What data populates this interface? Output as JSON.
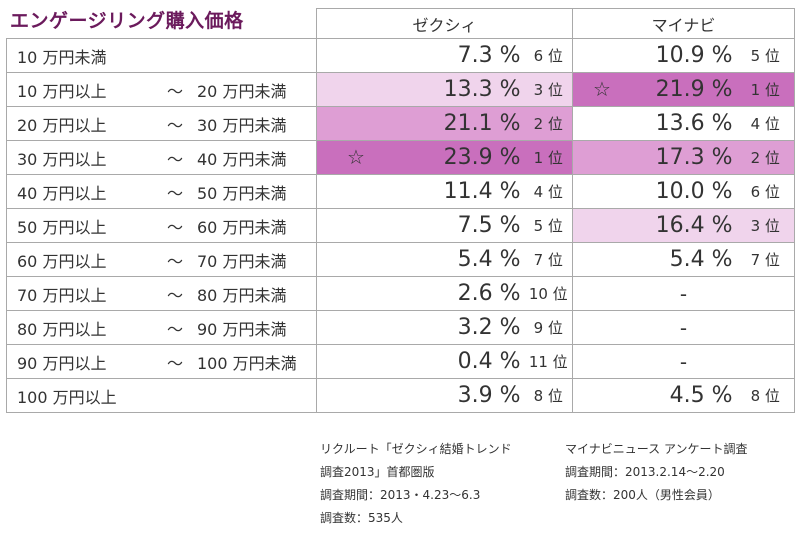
{
  "title": "エンゲージリング購入価格",
  "header": {
    "zexy": "ゼクシィ",
    "mynavi": "マイナビ"
  },
  "star": "☆",
  "rows": [
    {
      "label_from": "10 万円未満",
      "tilde": "",
      "label_to": "",
      "zexy_pct": "7.3 %",
      "zexy_rank": "6 位",
      "mynavi_pct": "10.9 %",
      "mynavi_rank": "5 位"
    },
    {
      "label_from": "10 万円以上",
      "tilde": "～",
      "label_to": "20 万円未満",
      "zexy_pct": "13.3 %",
      "zexy_rank": "3 位",
      "mynavi_pct": "21.9 %",
      "mynavi_rank": "1 位"
    },
    {
      "label_from": "20 万円以上",
      "tilde": "～",
      "label_to": "30 万円未満",
      "zexy_pct": "21.1 %",
      "zexy_rank": "2 位",
      "mynavi_pct": "13.6 %",
      "mynavi_rank": "4 位"
    },
    {
      "label_from": "30 万円以上",
      "tilde": "～",
      "label_to": "40 万円未満",
      "zexy_pct": "23.9 %",
      "zexy_rank": "1 位",
      "mynavi_pct": "17.3 %",
      "mynavi_rank": "2 位"
    },
    {
      "label_from": "40 万円以上",
      "tilde": "～",
      "label_to": "50 万円未満",
      "zexy_pct": "11.4 %",
      "zexy_rank": "4 位",
      "mynavi_pct": "10.0 %",
      "mynavi_rank": "6 位"
    },
    {
      "label_from": "50 万円以上",
      "tilde": "～",
      "label_to": "60 万円未満",
      "zexy_pct": "7.5 %",
      "zexy_rank": "5 位",
      "mynavi_pct": "16.4 %",
      "mynavi_rank": "3 位"
    },
    {
      "label_from": "60 万円以上",
      "tilde": "～",
      "label_to": "70 万円未満",
      "zexy_pct": "5.4 %",
      "zexy_rank": "7 位",
      "mynavi_pct": "5.4 %",
      "mynavi_rank": "7 位"
    },
    {
      "label_from": "70 万円以上",
      "tilde": "～",
      "label_to": "80 万円未満",
      "zexy_pct": "2.6 %",
      "zexy_rank": "10 位",
      "mynavi_pct": "-",
      "mynavi_rank": ""
    },
    {
      "label_from": "80 万円以上",
      "tilde": "～",
      "label_to": "90 万円未満",
      "zexy_pct": "3.2 %",
      "zexy_rank": "9 位",
      "mynavi_pct": "-",
      "mynavi_rank": ""
    },
    {
      "label_from": "90 万円以上",
      "tilde": "～",
      "label_to": "100 万円未満",
      "zexy_pct": "0.4 %",
      "zexy_rank": "11 位",
      "mynavi_pct": "-",
      "mynavi_rank": ""
    },
    {
      "label_from": "100 万円以上",
      "tilde": "",
      "label_to": "",
      "zexy_pct": "3.9 %",
      "zexy_rank": "8 位",
      "mynavi_pct": "4.5 %",
      "mynavi_rank": "8 位"
    }
  ],
  "highlight_colors": {
    "rank1": "#c96fbd",
    "rank2": "#de9ed4",
    "rank3": "#f0d4ec"
  },
  "notes": {
    "zexy": [
      "リクルート「ゼクシィ結婚トレンド",
      "調査2013」首都圏版",
      "調査期間：2013・4.23～6.3",
      "調査数：535人"
    ],
    "mynavi": [
      "マイナビニュース アンケート調査",
      "調査期間：2013.2.14～2.20",
      "調査数：200人（男性会員）"
    ]
  }
}
